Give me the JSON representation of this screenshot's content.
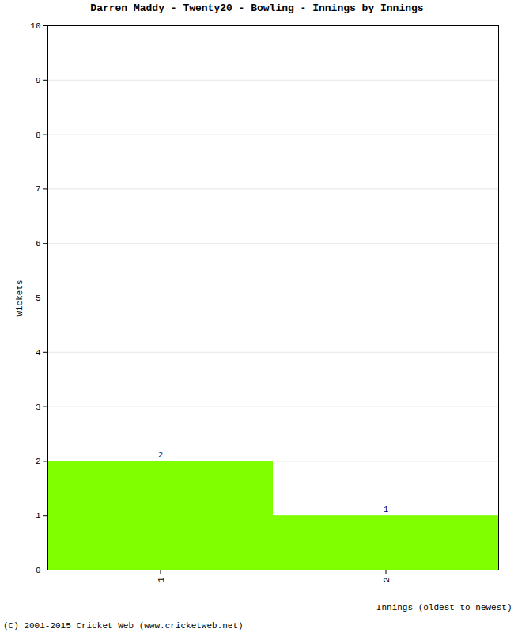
{
  "chart_data": {
    "type": "bar",
    "title": "Darren Maddy - Twenty20 - Bowling - Innings by Innings",
    "caption": "(C) 2001-2015 Cricket Web (www.cricketweb.net)",
    "x_label": "Innings (oldest to newest)",
    "y_label": "Wickets",
    "categories": [
      "1",
      "2"
    ],
    "values": [
      2,
      1
    ],
    "color": "#80ff00",
    "ylim": [
      0,
      10
    ],
    "yticks": [
      0,
      1,
      2,
      3,
      4,
      5,
      6,
      7,
      8,
      9,
      10
    ],
    "grid": true,
    "data_labels": true
  }
}
